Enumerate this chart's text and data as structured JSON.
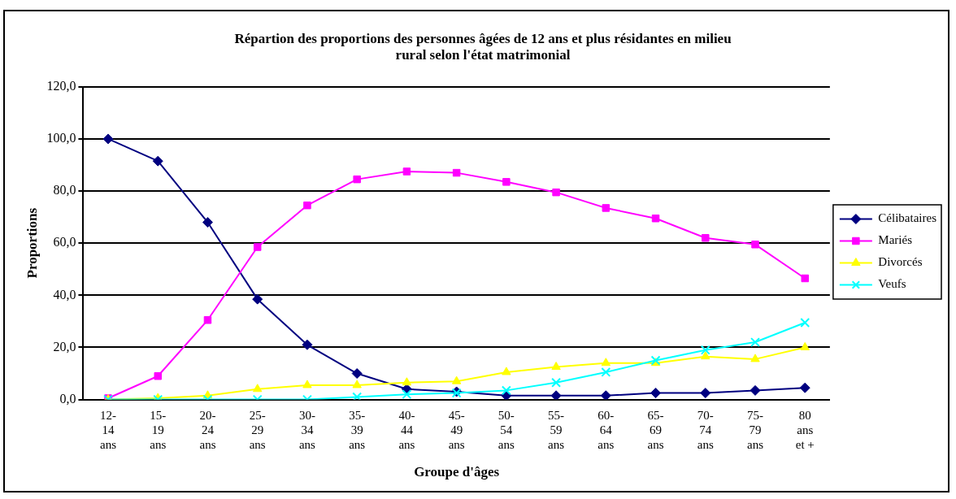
{
  "chart_data": {
    "type": "line",
    "title": "Répartion des proportions des personnes âgées de 12 ans et plus résidantes en milieu rural selon l'état matrimonial",
    "xlabel": "Groupe d'âges",
    "ylabel": "Proportions",
    "categories": [
      "12-\n14\nans",
      "15-\n19\nans",
      "20-\n24\nans",
      "25-\n29\nans",
      "30-\n34\nans",
      "35-\n39\nans",
      "40-\n44\nans",
      "45-\n49\nans",
      "50-\n54\nans",
      "55-\n59\nans",
      "60-\n64\nans",
      "65-\n69\nans",
      "70-\n74\nans",
      "75-\n79\nans",
      "80\nans\net +"
    ],
    "series": [
      {
        "name": "Célibataires",
        "color": "#000080",
        "marker": "diamond",
        "values": [
          100,
          91.5,
          68,
          38.5,
          21,
          10,
          4,
          3,
          1.5,
          1.5,
          1.5,
          2.5,
          2.5,
          3.5,
          4.5
        ]
      },
      {
        "name": "Mariés",
        "color": "#ff00ff",
        "marker": "square",
        "values": [
          0.5,
          9,
          30.5,
          58.5,
          74.5,
          84.5,
          87.5,
          87,
          83.5,
          79.5,
          73.5,
          69.5,
          62,
          59.5,
          46.5
        ]
      },
      {
        "name": "Divorcés",
        "color": "#ffff00",
        "marker": "triangle",
        "values": [
          0,
          0.5,
          1.5,
          4,
          5.5,
          5.5,
          6.5,
          7,
          10.5,
          12.5,
          14,
          14,
          16.5,
          15.5,
          20
        ]
      },
      {
        "name": "Veufs",
        "color": "#00ffff",
        "marker": "cross",
        "values": [
          0,
          0,
          0,
          0,
          0,
          1,
          2,
          2.5,
          3.5,
          6.5,
          10.5,
          15,
          19,
          22,
          29.5
        ]
      }
    ],
    "ylim": [
      0,
      120
    ],
    "yticks": [
      {
        "value": 0,
        "label": "0,0"
      },
      {
        "value": 20,
        "label": "20,0"
      },
      {
        "value": 40,
        "label": "40,0"
      },
      {
        "value": 60,
        "label": "60,0"
      },
      {
        "value": 80,
        "label": "80,0"
      },
      {
        "value": 100,
        "label": "100,0"
      },
      {
        "value": 120,
        "label": "120,0"
      }
    ],
    "grid": "y",
    "legend": "right",
    "line_style": "solid"
  }
}
